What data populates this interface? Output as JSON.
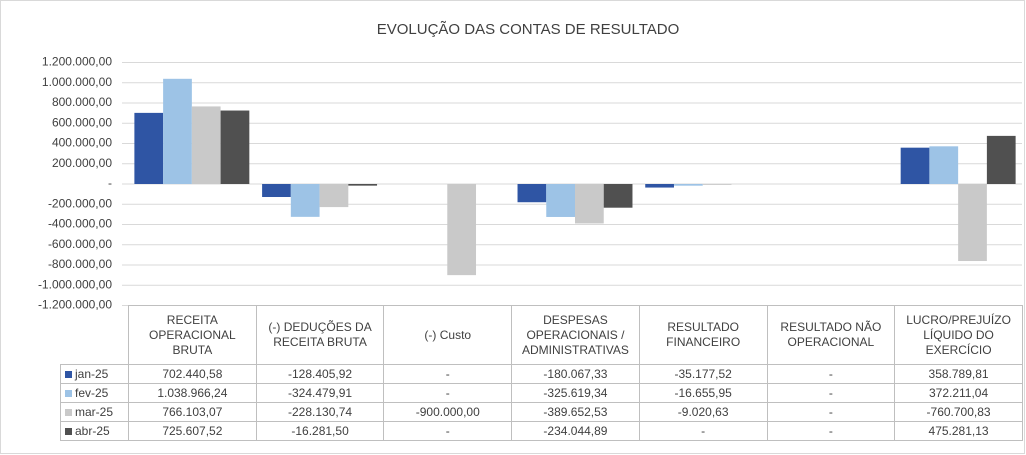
{
  "chart_data": {
    "type": "bar",
    "title": "EVOLUÇÃO DAS CONTAS DE RESULTADO",
    "categories": [
      "RECEITA OPERACIONAL BRUTA",
      "(-) DEDUÇÕES DA RECEITA BRUTA",
      "(-) Custo",
      "DESPESAS OPERACIONAIS / ADMINISTRATIVAS",
      "RESULTADO FINANCEIRO",
      "RESULTADO NÃO OPERACIONAL",
      "LUCRO/PREJUÍZO LÍQUIDO DO EXERCÍCIO"
    ],
    "series": [
      {
        "name": "jan-25",
        "color": "#2f55a4",
        "values": [
          702440.58,
          -128405.92,
          0,
          -180067.33,
          -35177.52,
          0,
          358789.81
        ],
        "value_labels": [
          "702.440,58",
          "-128.405,92",
          "-",
          "-180.067,33",
          "-35.177,52",
          "-",
          "358.789,81"
        ]
      },
      {
        "name": "fev-25",
        "color": "#9dc3e6",
        "values": [
          1038966.24,
          -324479.91,
          0,
          -325619.34,
          -16655.95,
          0,
          372211.04
        ],
        "value_labels": [
          "1.038.966,24",
          "-324.479,91",
          "-",
          "-325.619,34",
          "-16.655,95",
          "-",
          "372.211,04"
        ]
      },
      {
        "name": "mar-25",
        "color": "#c9c9c9",
        "values": [
          766103.07,
          -228130.74,
          -900000.0,
          -389652.53,
          -9020.63,
          0,
          -760700.83
        ],
        "value_labels": [
          "766.103,07",
          "-228.130,74",
          "-900.000,00",
          "-389.652,53",
          "-9.020,63",
          "-",
          "-760.700,83"
        ]
      },
      {
        "name": "abr-25",
        "color": "#505050",
        "values": [
          725607.52,
          -16281.5,
          0,
          -234044.89,
          0,
          0,
          475281.13
        ],
        "value_labels": [
          "725.607,52",
          "-16.281,50",
          "-",
          "-234.044,89",
          "-",
          "-",
          "475.281,13"
        ]
      }
    ],
    "ylim": [
      -1200000,
      1200000
    ],
    "yticks": [
      {
        "value": -1200000,
        "label": "-1.200.000,00"
      },
      {
        "value": -1000000,
        "label": "-1.000.000,00"
      },
      {
        "value": -800000,
        "label": "-800.000,00"
      },
      {
        "value": -600000,
        "label": "-600.000,00"
      },
      {
        "value": -400000,
        "label": "-400.000,00"
      },
      {
        "value": -200000,
        "label": "-200.000,00"
      },
      {
        "value": 0,
        "label": "-"
      },
      {
        "value": 200000,
        "label": "200.000,00"
      },
      {
        "value": 400000,
        "label": "400.000,00"
      },
      {
        "value": 600000,
        "label": "600.000,00"
      },
      {
        "value": 800000,
        "label": "800.000,00"
      },
      {
        "value": 1000000,
        "label": "1.000.000,00"
      },
      {
        "value": 1200000,
        "label": "1.200.000,00"
      }
    ],
    "grid": true
  }
}
